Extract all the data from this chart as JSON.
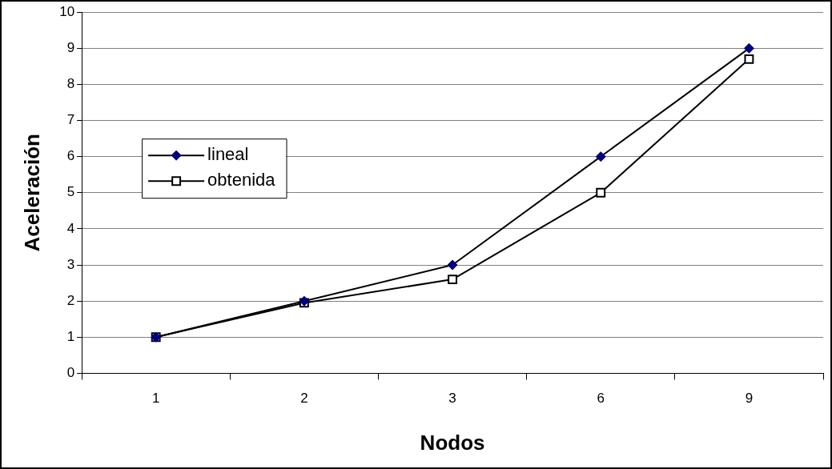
{
  "chart_data": {
    "type": "line",
    "xlabel": "Nodos",
    "ylabel": "Aceleración",
    "categories": [
      "1",
      "2",
      "3",
      "6",
      "9"
    ],
    "series": [
      {
        "name": "lineal",
        "color": "#000080",
        "marker": "diamond",
        "values": [
          1,
          2,
          3,
          6,
          9
        ]
      },
      {
        "name": "obtenida",
        "color": "#000000",
        "marker": "square",
        "values": [
          1,
          1.95,
          2.6,
          5,
          8.7
        ]
      }
    ],
    "ylim": [
      0,
      10
    ],
    "yticks": [
      0,
      1,
      2,
      3,
      4,
      5,
      6,
      7,
      8,
      9,
      10
    ],
    "grid": "y",
    "legend": "top left",
    "line_style": "solid"
  }
}
